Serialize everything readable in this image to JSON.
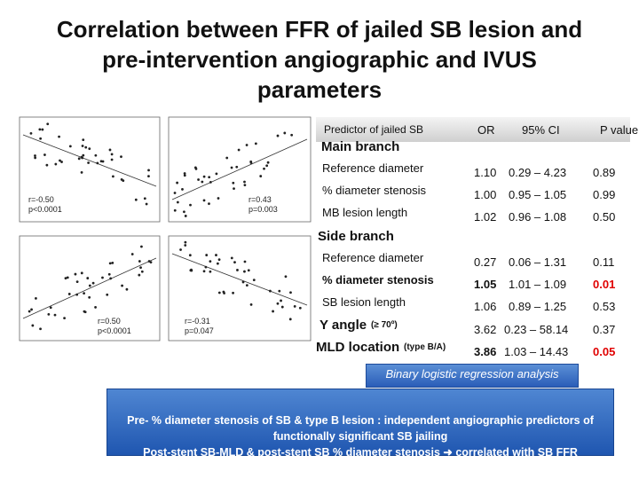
{
  "title": [
    "Correlation between FFR of jailed SB lesion and",
    "pre-intervention angiographic and IVUS",
    "parameters"
  ],
  "panels": [
    {
      "r": "r=-0.50",
      "p": "p<0.0001"
    },
    {
      "r": "r=0.43",
      "p": "p=0.003"
    },
    {
      "r": "r=0.50",
      "p": "p<0.0001"
    },
    {
      "r": "r=-0.31",
      "p": "p=0.047"
    }
  ],
  "table": {
    "header": [
      "Predictor of jailed SB",
      "OR",
      "95% CI",
      "P value"
    ],
    "sections": [
      {
        "name": "Main branch",
        "rows": [
          [
            "Reference diameter",
            "1.10",
            "0.29 – 4.23",
            "0.89"
          ],
          [
            "% diameter stenosis",
            "1.00",
            "0.95 – 1.05",
            "0.99"
          ],
          [
            "MB lesion length",
            "1.02",
            "0.96 – 1.08",
            "0.50"
          ]
        ]
      },
      {
        "name": "Side branch",
        "rows": [
          [
            "Reference diameter",
            "0.27",
            "0.06 – 1.31",
            "0.11"
          ],
          [
            "% diameter stenosis",
            "1.05",
            "1.01 – 1.09",
            "0.01"
          ],
          [
            "SB lesion length",
            "1.06",
            "0.89 – 1.25",
            "0.53"
          ]
        ]
      }
    ],
    "extra_rows": [
      {
        "name": "Y angle",
        "qualifier": "(≥ 70º)",
        "or": "3.62",
        "ci": "0.23 – 58.14",
        "p": "0.37"
      },
      {
        "name": "MLD location",
        "qualifier": "(type B/A)",
        "or": "3.86",
        "ci": "1.03 – 14.43",
        "p": "0.05"
      }
    ]
  },
  "note": "Binary logistic regression analysis",
  "footer": {
    "line1": "Pre- % diameter stenosis of SB & type B lesion : independent angiographic predictors of functionally significant SB jailing",
    "line2a": "Post-stent SB-MLD & post-stent SB % diameter stenosis",
    "line2b": "correlated with SB FFR"
  }
}
